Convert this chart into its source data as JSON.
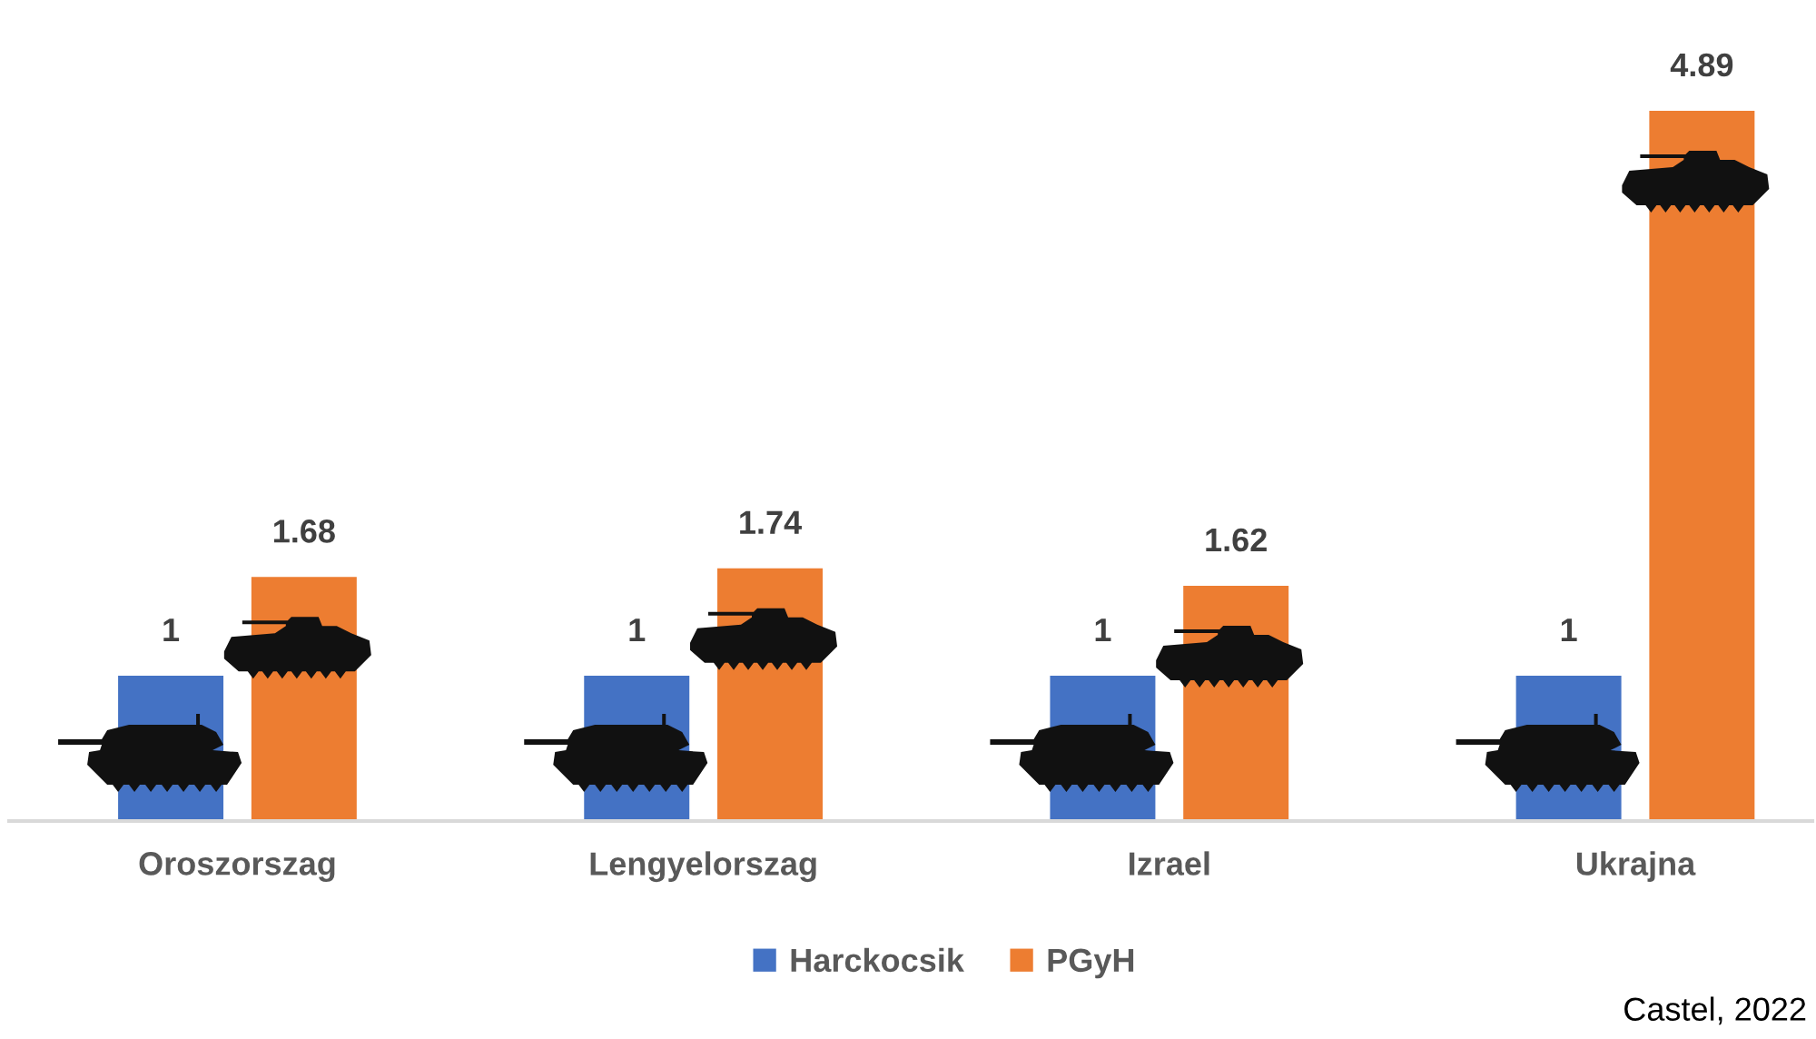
{
  "chart_data": {
    "type": "bar",
    "categories": [
      "Oroszorszag",
      "Lengyelorszag",
      "Izrael",
      "Ukrajna"
    ],
    "series": [
      {
        "name": "Harckocsik",
        "color": "#4472c4",
        "values": [
          1,
          1,
          1,
          1
        ]
      },
      {
        "name": "PGyH",
        "color": "#ed7d31",
        "values": [
          1.68,
          1.74,
          1.62,
          4.89
        ]
      }
    ],
    "data_labels": true,
    "legend": "bottom",
    "tick_labels": "x",
    "annotations": [
      "Castel, 2022"
    ]
  }
}
